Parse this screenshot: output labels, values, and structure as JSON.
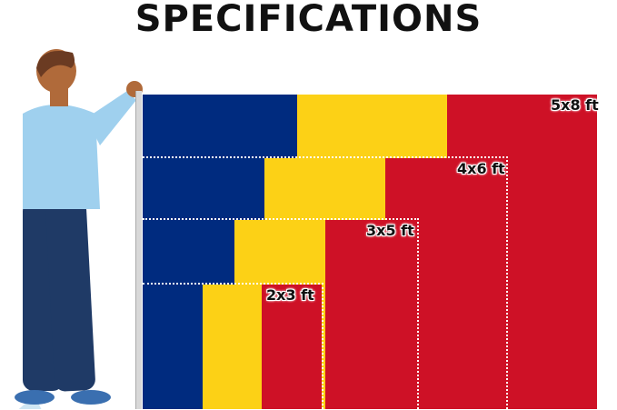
{
  "title": "SPECIFICATIONS",
  "colors": {
    "blue": "#002b7f",
    "yellow": "#fcd116",
    "red": "#ce1126"
  },
  "sizes": [
    {
      "label": "5x8 ft"
    },
    {
      "label": "4x6 ft"
    },
    {
      "label": "3x5 ft"
    },
    {
      "label": "2x3 ft"
    }
  ]
}
